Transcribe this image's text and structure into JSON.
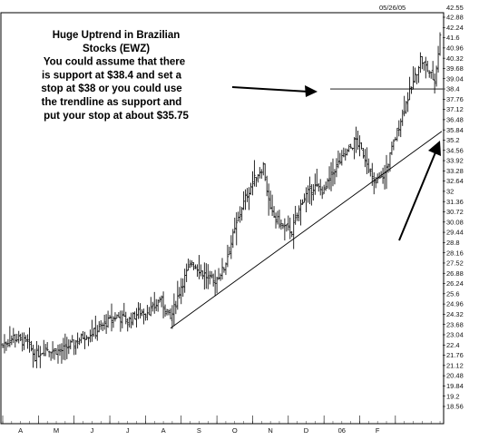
{
  "chart_data": {
    "type": "ohlc",
    "annotation_lines": [
      "Huge Uptrend in Brazilian",
      "Stocks (EWZ)",
      "You could assume that there",
      "is support at $38.4 and set a",
      "stop at $38 or you could use",
      "the trendline as support and",
      "put your stop at about $35.75"
    ],
    "header_date": "05/26/05",
    "header_value": "42.55",
    "y_ticks": [
      "42.88",
      "42.24",
      "41.6",
      "40.96",
      "40.32",
      "39.68",
      "39.04",
      "38.4",
      "37.76",
      "37.12",
      "36.48",
      "35.84",
      "35.2",
      "34.56",
      "33.92",
      "33.28",
      "32.64",
      "32",
      "31.36",
      "30.72",
      "30.08",
      "29.44",
      "28.8",
      "28.16",
      "27.52",
      "26.88",
      "26.24",
      "25.6",
      "24.96",
      "24.32",
      "23.68",
      "23.04",
      "22.4",
      "21.76",
      "21.12",
      "20.48",
      "19.84",
      "19.2",
      "18.56"
    ],
    "ylim": [
      18.56,
      42.88
    ],
    "month_labels": [
      "A",
      "M",
      "J",
      "J",
      "A",
      "S",
      "O",
      "N",
      "D",
      "06",
      "F"
    ],
    "bars_per_month": 20,
    "n_bars": 246,
    "support_level": 38.4,
    "trendline": {
      "x": [
        94,
        246
      ],
      "y": [
        23.45,
        35.75
      ]
    },
    "price_control_points": [
      {
        "x": 0,
        "y": 22.4
      },
      {
        "x": 6,
        "y": 22.9
      },
      {
        "x": 14,
        "y": 22.5
      },
      {
        "x": 18,
        "y": 21.7
      },
      {
        "x": 24,
        "y": 22.2
      },
      {
        "x": 32,
        "y": 22.0
      },
      {
        "x": 40,
        "y": 22.5
      },
      {
        "x": 46,
        "y": 23.0
      },
      {
        "x": 52,
        "y": 23.2
      },
      {
        "x": 58,
        "y": 23.8
      },
      {
        "x": 64,
        "y": 24.2
      },
      {
        "x": 70,
        "y": 23.9
      },
      {
        "x": 76,
        "y": 24.4
      },
      {
        "x": 84,
        "y": 24.6
      },
      {
        "x": 88,
        "y": 25.3
      },
      {
        "x": 92,
        "y": 24.5
      },
      {
        "x": 94,
        "y": 24.0
      },
      {
        "x": 100,
        "y": 26.1
      },
      {
        "x": 106,
        "y": 27.6
      },
      {
        "x": 112,
        "y": 26.9
      },
      {
        "x": 118,
        "y": 26.3
      },
      {
        "x": 124,
        "y": 27.2
      },
      {
        "x": 128,
        "y": 28.8
      },
      {
        "x": 134,
        "y": 31.0
      },
      {
        "x": 140,
        "y": 32.6
      },
      {
        "x": 146,
        "y": 33.6
      },
      {
        "x": 150,
        "y": 30.7
      },
      {
        "x": 156,
        "y": 29.9
      },
      {
        "x": 162,
        "y": 29.5
      },
      {
        "x": 168,
        "y": 31.5
      },
      {
        "x": 174,
        "y": 32.3
      },
      {
        "x": 180,
        "y": 32.0
      },
      {
        "x": 186,
        "y": 33.4
      },
      {
        "x": 192,
        "y": 34.3
      },
      {
        "x": 198,
        "y": 35.2
      },
      {
        "x": 204,
        "y": 33.9
      },
      {
        "x": 208,
        "y": 32.4
      },
      {
        "x": 214,
        "y": 33.1
      },
      {
        "x": 218,
        "y": 34.6
      },
      {
        "x": 224,
        "y": 36.9
      },
      {
        "x": 230,
        "y": 38.8
      },
      {
        "x": 234,
        "y": 40.3
      },
      {
        "x": 238,
        "y": 39.6
      },
      {
        "x": 242,
        "y": 38.9
      },
      {
        "x": 246,
        "y": 42.55
      }
    ]
  }
}
